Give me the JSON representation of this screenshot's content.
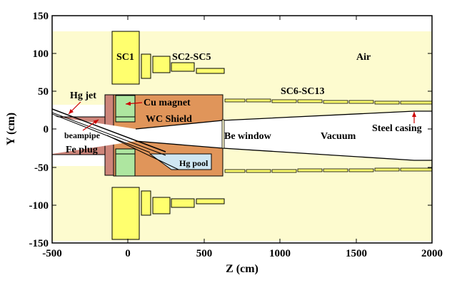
{
  "axes": {
    "xlabel": "Z (cm)",
    "ylabel": "Y (cm)",
    "xlim": [
      -500,
      2000
    ],
    "ylim": [
      -150,
      150
    ],
    "xticks": [
      -500,
      0,
      500,
      1000,
      1500,
      2000
    ],
    "yticks": [
      -150,
      -100,
      -50,
      0,
      50,
      100,
      150
    ],
    "xtick_labels": [
      "-500",
      "0",
      "500",
      "1000",
      "1500",
      "2000"
    ],
    "ytick_labels": [
      "-150",
      "-100",
      "-50",
      "0",
      "50",
      "100",
      "150"
    ]
  },
  "labels": {
    "sc1": "SC1",
    "sc2_sc5": "SC2-SC5",
    "air": "Air",
    "sc6_sc13": "SC6-SC13",
    "hg_jet": "Hg jet",
    "cu_magnet": "Cu magnet",
    "wc_shield": "WC Shield",
    "be_window": "Be window",
    "vacuum": "Vacuum",
    "steel_casing": "Steel casing",
    "beampipe": "beampipe",
    "fe_plug": "Fe plug",
    "hg_pool": "Hg pool"
  },
  "colors": {
    "air": "#fdfbcf",
    "coil": "#ffff6e",
    "wc_shield": "#e0955a",
    "cu_magnet": "#aee6a0",
    "fe_plug": "#cd857a",
    "hg_pool": "#cfe6f2",
    "vacuum": "#ffffff",
    "arrow": "#cc0000"
  }
}
